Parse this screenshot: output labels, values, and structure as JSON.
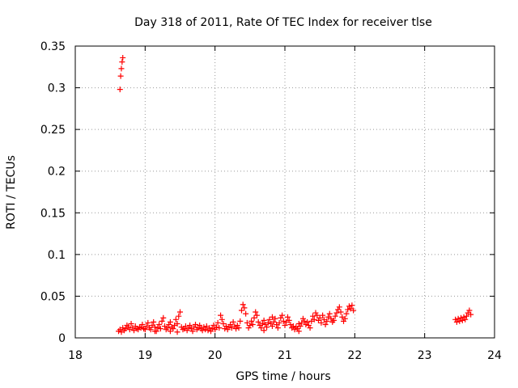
{
  "chart_data": {
    "type": "scatter",
    "title": "Day 318 of 2011, Rate Of TEC Index for receiver tlse",
    "xlabel": "GPS time / hours",
    "ylabel": "ROTI / TECUs",
    "xlim": [
      18,
      24
    ],
    "ylim": [
      0,
      0.35
    ],
    "xticks": [
      18,
      19,
      20,
      21,
      22,
      23,
      24
    ],
    "yticks": [
      0,
      0.05,
      0.1,
      0.15,
      0.2,
      0.25,
      0.3,
      0.35
    ],
    "xtick_labels": [
      "18",
      "19",
      "20",
      "21",
      "22",
      "23",
      "24"
    ],
    "ytick_labels": [
      "0",
      "0.05",
      "0.1",
      "0.15",
      "0.2",
      "0.25",
      "0.3",
      "0.35"
    ],
    "grid": true,
    "marker": "+",
    "color": "#ff0000",
    "series": [
      {
        "points": [
          [
            18.64,
            0.298
          ],
          [
            18.65,
            0.314
          ],
          [
            18.66,
            0.323
          ],
          [
            18.67,
            0.331
          ],
          [
            18.68,
            0.336
          ],
          [
            18.62,
            0.008
          ],
          [
            18.64,
            0.01
          ],
          [
            18.66,
            0.007
          ],
          [
            18.68,
            0.012
          ],
          [
            18.7,
            0.009
          ],
          [
            18.72,
            0.011
          ],
          [
            18.74,
            0.015
          ],
          [
            18.76,
            0.013
          ],
          [
            18.78,
            0.01
          ],
          [
            18.8,
            0.017
          ],
          [
            18.82,
            0.012
          ],
          [
            18.84,
            0.009
          ],
          [
            18.86,
            0.014
          ],
          [
            18.88,
            0.011
          ],
          [
            18.9,
            0.01
          ],
          [
            18.92,
            0.013
          ],
          [
            18.94,
            0.012
          ],
          [
            18.96,
            0.016
          ],
          [
            18.98,
            0.011
          ],
          [
            19.0,
            0.01
          ],
          [
            19.02,
            0.014
          ],
          [
            19.04,
            0.018
          ],
          [
            19.06,
            0.012
          ],
          [
            19.08,
            0.01
          ],
          [
            19.1,
            0.015
          ],
          [
            19.12,
            0.019
          ],
          [
            19.14,
            0.013
          ],
          [
            19.16,
            0.008
          ],
          [
            19.18,
            0.012
          ],
          [
            19.2,
            0.016
          ],
          [
            19.22,
            0.011
          ],
          [
            19.24,
            0.02
          ],
          [
            19.26,
            0.024
          ],
          [
            19.28,
            0.014
          ],
          [
            19.3,
            0.01
          ],
          [
            19.32,
            0.012
          ],
          [
            19.34,
            0.016
          ],
          [
            19.36,
            0.019
          ],
          [
            19.38,
            0.013
          ],
          [
            19.4,
            0.011
          ],
          [
            19.42,
            0.015
          ],
          [
            19.44,
            0.022
          ],
          [
            19.46,
            0.017
          ],
          [
            19.48,
            0.026
          ],
          [
            19.5,
            0.031
          ],
          [
            19.52,
            0.013
          ],
          [
            19.54,
            0.01
          ],
          [
            19.56,
            0.011
          ],
          [
            19.58,
            0.014
          ],
          [
            19.6,
            0.009
          ],
          [
            19.62,
            0.012
          ],
          [
            19.64,
            0.015
          ],
          [
            19.66,
            0.011
          ],
          [
            19.68,
            0.008
          ],
          [
            19.7,
            0.013
          ],
          [
            19.72,
            0.016
          ],
          [
            19.74,
            0.01
          ],
          [
            19.76,
            0.012
          ],
          [
            19.78,
            0.015
          ],
          [
            19.8,
            0.011
          ],
          [
            19.82,
            0.009
          ],
          [
            19.84,
            0.013
          ],
          [
            19.86,
            0.01
          ],
          [
            19.88,
            0.014
          ],
          [
            19.9,
            0.009
          ],
          [
            19.92,
            0.012
          ],
          [
            19.94,
            0.008
          ],
          [
            19.96,
            0.011
          ],
          [
            19.98,
            0.015
          ],
          [
            20.0,
            0.01
          ],
          [
            20.02,
            0.013
          ],
          [
            20.04,
            0.018
          ],
          [
            20.06,
            0.012
          ],
          [
            20.08,
            0.027
          ],
          [
            20.1,
            0.022
          ],
          [
            20.12,
            0.017
          ],
          [
            20.14,
            0.011
          ],
          [
            20.16,
            0.014
          ],
          [
            20.18,
            0.01
          ],
          [
            20.2,
            0.013
          ],
          [
            20.22,
            0.016
          ],
          [
            20.24,
            0.012
          ],
          [
            20.26,
            0.019
          ],
          [
            20.28,
            0.014
          ],
          [
            20.3,
            0.011
          ],
          [
            20.32,
            0.015
          ],
          [
            20.34,
            0.012
          ],
          [
            20.36,
            0.02
          ],
          [
            20.38,
            0.033
          ],
          [
            20.4,
            0.04
          ],
          [
            20.42,
            0.036
          ],
          [
            20.44,
            0.029
          ],
          [
            20.46,
            0.018
          ],
          [
            20.48,
            0.012
          ],
          [
            20.5,
            0.015
          ],
          [
            20.52,
            0.02
          ],
          [
            20.54,
            0.016
          ],
          [
            20.56,
            0.024
          ],
          [
            20.58,
            0.031
          ],
          [
            20.6,
            0.027
          ],
          [
            20.62,
            0.019
          ],
          [
            20.64,
            0.015
          ],
          [
            20.66,
            0.012
          ],
          [
            20.68,
            0.017
          ],
          [
            20.7,
            0.021
          ],
          [
            20.72,
            0.016
          ],
          [
            20.74,
            0.013
          ],
          [
            20.76,
            0.018
          ],
          [
            20.78,
            0.022
          ],
          [
            20.8,
            0.017
          ],
          [
            20.82,
            0.014
          ],
          [
            20.84,
            0.019
          ],
          [
            20.86,
            0.023
          ],
          [
            20.88,
            0.016
          ],
          [
            20.9,
            0.012
          ],
          [
            20.92,
            0.018
          ],
          [
            20.94,
            0.024
          ],
          [
            20.96,
            0.027
          ],
          [
            20.98,
            0.02
          ],
          [
            21.0,
            0.015
          ],
          [
            21.02,
            0.019
          ],
          [
            21.04,
            0.025
          ],
          [
            21.06,
            0.021
          ],
          [
            21.08,
            0.016
          ],
          [
            21.1,
            0.012
          ],
          [
            21.12,
            0.014
          ],
          [
            21.14,
            0.01
          ],
          [
            21.16,
            0.013
          ],
          [
            21.18,
            0.011
          ],
          [
            21.2,
            0.017
          ],
          [
            21.22,
            0.014
          ],
          [
            21.24,
            0.018
          ],
          [
            21.26,
            0.023
          ],
          [
            21.28,
            0.02
          ],
          [
            21.3,
            0.016
          ],
          [
            21.32,
            0.019
          ],
          [
            21.34,
            0.015
          ],
          [
            21.36,
            0.012
          ],
          [
            21.38,
            0.02
          ],
          [
            21.4,
            0.026
          ],
          [
            21.42,
            0.022
          ],
          [
            21.44,
            0.03
          ],
          [
            21.46,
            0.027
          ],
          [
            21.48,
            0.021
          ],
          [
            21.5,
            0.024
          ],
          [
            21.52,
            0.018
          ],
          [
            21.54,
            0.027
          ],
          [
            21.56,
            0.022
          ],
          [
            21.58,
            0.016
          ],
          [
            21.6,
            0.02
          ],
          [
            21.62,
            0.025
          ],
          [
            21.64,
            0.029
          ],
          [
            21.66,
            0.023
          ],
          [
            21.68,
            0.019
          ],
          [
            21.7,
            0.021
          ],
          [
            21.72,
            0.026
          ],
          [
            21.74,
            0.03
          ],
          [
            21.76,
            0.034
          ],
          [
            21.78,
            0.037
          ],
          [
            21.8,
            0.031
          ],
          [
            21.82,
            0.025
          ],
          [
            21.84,
            0.02
          ],
          [
            21.86,
            0.023
          ],
          [
            21.88,
            0.029
          ],
          [
            21.9,
            0.034
          ],
          [
            21.92,
            0.038
          ],
          [
            21.94,
            0.035
          ],
          [
            21.96,
            0.039
          ],
          [
            21.98,
            0.033
          ],
          [
            19.36,
            0.008
          ],
          [
            19.14,
            0.008
          ],
          [
            20.82,
            0.025
          ],
          [
            21.2,
            0.008
          ],
          [
            19.46,
            0.007
          ],
          [
            20.7,
            0.009
          ],
          [
            23.44,
            0.022
          ],
          [
            23.46,
            0.019
          ],
          [
            23.48,
            0.023
          ],
          [
            23.5,
            0.02
          ],
          [
            23.52,
            0.024
          ],
          [
            23.54,
            0.021
          ],
          [
            23.56,
            0.025
          ],
          [
            23.58,
            0.022
          ],
          [
            23.6,
            0.026
          ],
          [
            23.62,
            0.03
          ],
          [
            23.64,
            0.033
          ],
          [
            23.66,
            0.028
          ]
        ]
      }
    ]
  }
}
